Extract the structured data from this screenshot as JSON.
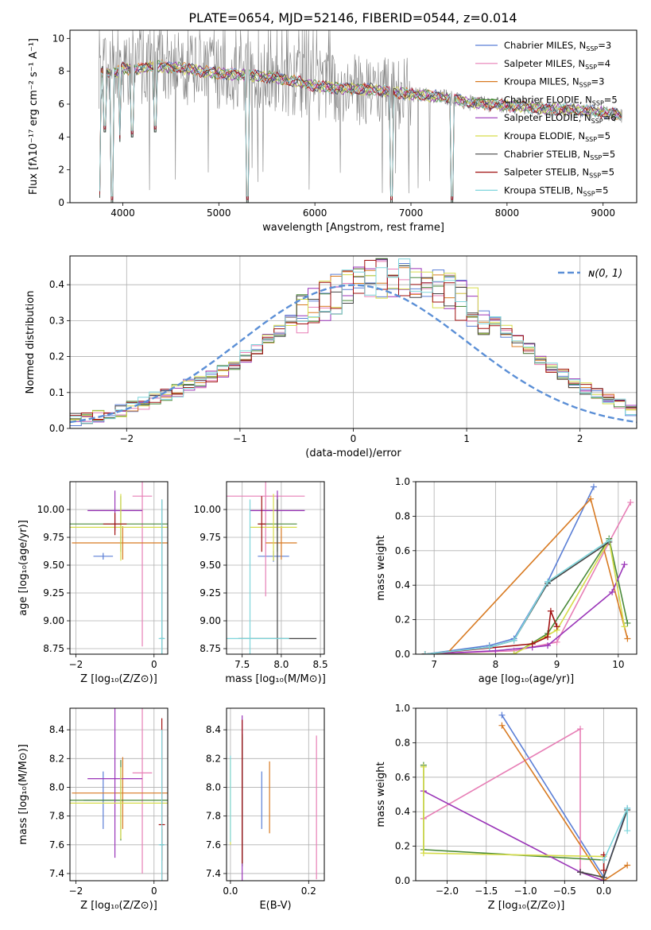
{
  "title": "PLATE=0654, MJD=52146, FIBERID=0544, z=0.014",
  "colors": [
    "#5b7fd6",
    "#e77fb6",
    "#d87a22",
    "#4a8a3a",
    "#9a35b8",
    "#d6dc4a",
    "#444444",
    "#a01010",
    "#7fd6dc"
  ],
  "legend_names": [
    {
      "base": "Chabrier MILES, N",
      "sub": "SSP",
      "tail": "=3"
    },
    {
      "base": "Salpeter MILES, N",
      "sub": "SSP",
      "tail": "=4"
    },
    {
      "base": "Kroupa MILES, N",
      "sub": "SSP",
      "tail": "=3"
    },
    {
      "base": "Chabrier ELODIE, N",
      "sub": "SSP",
      "tail": "=5"
    },
    {
      "base": "Salpeter ELODIE, N",
      "sub": "SSP",
      "tail": "=6"
    },
    {
      "base": "Kroupa ELODIE, N",
      "sub": "SSP",
      "tail": "=5"
    },
    {
      "base": "Chabrier STELIB, N",
      "sub": "SSP",
      "tail": "=5"
    },
    {
      "base": "Salpeter STELIB, N",
      "sub": "SSP",
      "tail": "=5"
    },
    {
      "base": "Kroupa STELIB, N",
      "sub": "SSP",
      "tail": "=5"
    }
  ],
  "chart_data": [
    {
      "id": "spectrum",
      "type": "line",
      "xlabel": "wavelength [Angstrom, rest frame]",
      "ylabel": "Flux [fλ10⁻¹⁷ erg cm⁻² s⁻¹ A⁻¹]",
      "xlim": [
        3450,
        9350
      ],
      "ylim": [
        0,
        10.5
      ],
      "xticks": [
        4000,
        5000,
        6000,
        7000,
        8000,
        9000
      ],
      "yticks": [
        0,
        2,
        4,
        6,
        8,
        10
      ],
      "continuum": [
        [
          3750,
          7.5
        ],
        [
          3800,
          8.1
        ],
        [
          3900,
          7.8
        ],
        [
          4000,
          8.2
        ],
        [
          4100,
          8.1
        ],
        [
          4200,
          8.2
        ],
        [
          4400,
          8.3
        ],
        [
          4600,
          8.2
        ],
        [
          4800,
          8.0
        ],
        [
          5000,
          7.9
        ],
        [
          5200,
          7.8
        ],
        [
          5400,
          7.7
        ],
        [
          5600,
          7.6
        ],
        [
          5800,
          7.4
        ],
        [
          6000,
          7.1
        ],
        [
          6200,
          7.0
        ],
        [
          6400,
          6.9
        ],
        [
          6600,
          6.9
        ],
        [
          6800,
          6.7
        ],
        [
          7000,
          6.6
        ],
        [
          7200,
          6.5
        ],
        [
          7400,
          6.4
        ],
        [
          7600,
          6.1
        ],
        [
          7800,
          6.0
        ],
        [
          8000,
          5.9
        ],
        [
          8200,
          5.85
        ],
        [
          8400,
          5.7
        ],
        [
          8600,
          5.7
        ],
        [
          8800,
          5.6
        ],
        [
          9000,
          5.5
        ],
        [
          9200,
          5.3
        ]
      ],
      "dips": [
        [
          3760,
          0.3
        ],
        [
          3810,
          4.3
        ],
        [
          3890,
          0
        ],
        [
          3970,
          3.7
        ],
        [
          4100,
          4.0
        ],
        [
          4340,
          4.3
        ],
        [
          5300,
          0
        ],
        [
          6800,
          0
        ],
        [
          7430,
          0
        ]
      ]
    },
    {
      "id": "residuals",
      "type": "bar",
      "xlabel": "(data-model)/error",
      "ylabel": "Normed distribution",
      "xlim": [
        -2.5,
        2.5
      ],
      "ylim": [
        0,
        0.48
      ],
      "xticks": [
        -2,
        -1,
        0,
        1,
        2
      ],
      "yticks": [
        0.0,
        0.1,
        0.2,
        0.3,
        0.4
      ],
      "legend": "ɴ(0, 1)",
      "bin_edges_start": -2.5,
      "bin_width": 0.1,
      "base_values": [
        0.025,
        0.03,
        0.035,
        0.04,
        0.05,
        0.06,
        0.07,
        0.085,
        0.095,
        0.105,
        0.12,
        0.13,
        0.145,
        0.16,
        0.18,
        0.2,
        0.22,
        0.245,
        0.27,
        0.3,
        0.32,
        0.34,
        0.36,
        0.375,
        0.39,
        0.4,
        0.41,
        0.415,
        0.42,
        0.42,
        0.41,
        0.4,
        0.39,
        0.375,
        0.36,
        0.34,
        0.32,
        0.3,
        0.27,
        0.245,
        0.22,
        0.195,
        0.17,
        0.15,
        0.13,
        0.11,
        0.095,
        0.08,
        0.065,
        0.05
      ]
    },
    {
      "id": "age_vs_Z",
      "type": "errorbar",
      "xlabel": "Z [log₁₀(Z/Z⊙)]",
      "ylabel": "age  [log₁₀(age/yr)]",
      "xlim": [
        -2.15,
        0.35
      ],
      "ylim": [
        8.7,
        10.25
      ],
      "xticks": [
        -2,
        0
      ],
      "yticks": [
        8.75,
        9.0,
        9.25,
        9.5,
        9.75,
        10.0
      ],
      "points": [
        [
          -1.3,
          9.58,
          0.25,
          0.03,
          0
        ],
        [
          -0.3,
          10.12,
          0.25,
          1.35,
          1
        ],
        [
          -0.8,
          9.7,
          1.3,
          0.15,
          2
        ],
        [
          -0.85,
          9.87,
          1.3,
          0.25,
          3
        ],
        [
          -1.0,
          9.99,
          0.7,
          0.18,
          4
        ],
        [
          -0.85,
          9.84,
          1.3,
          0.3,
          5
        ],
        [
          0.2,
          8.84,
          0.05,
          1.25,
          6
        ],
        [
          -1.0,
          9.87,
          0.3,
          0.1,
          7
        ],
        [
          0.2,
          8.84,
          0.08,
          1.25,
          8
        ]
      ]
    },
    {
      "id": "age_vs_mass",
      "type": "errorbar",
      "xlabel": "mass [log₁₀(M/M⊙)]",
      "ylabel": "",
      "xlim": [
        7.3,
        8.55
      ],
      "ylim": [
        8.7,
        10.25
      ],
      "xticks": [
        7.5,
        8.0,
        8.5
      ],
      "yticks": [
        8.75,
        9.0,
        9.25,
        9.5,
        9.75,
        10.0
      ],
      "points": [
        [
          7.9,
          9.58,
          0.2,
          0.05,
          0
        ],
        [
          7.8,
          10.12,
          0.5,
          0.9,
          1
        ],
        [
          8.0,
          9.7,
          0.2,
          0.15,
          2
        ],
        [
          7.95,
          9.87,
          0.25,
          0.25,
          3
        ],
        [
          7.95,
          9.99,
          0.35,
          0.18,
          4
        ],
        [
          7.9,
          9.84,
          0.3,
          0.3,
          5
        ],
        [
          7.95,
          8.84,
          0.5,
          1.25,
          6
        ],
        [
          7.75,
          9.87,
          0.05,
          0.25,
          7
        ],
        [
          7.6,
          8.84,
          0.5,
          1.25,
          8
        ]
      ]
    },
    {
      "id": "weight_vs_age",
      "type": "line",
      "xlabel": "age  [log₁₀(age/yr)]",
      "ylabel": "mass weight",
      "xlim": [
        6.7,
        10.3
      ],
      "ylim": [
        0,
        1.0
      ],
      "xticks": [
        7,
        8,
        9,
        10
      ],
      "yticks": [
        0.0,
        0.2,
        0.4,
        0.6,
        0.8,
        1.0
      ],
      "series": [
        {
          "c": 0,
          "x": [
            6.85,
            7.9,
            8.3,
            8.85,
            9.6
          ],
          "y": [
            0,
            0.05,
            0.09,
            0.42,
            0.97
          ]
        },
        {
          "c": 1,
          "x": [
            6.85,
            8.3,
            9.0,
            9.85,
            10.2
          ],
          "y": [
            0,
            0.02,
            0.07,
            0.65,
            0.88
          ]
        },
        {
          "c": 2,
          "x": [
            6.85,
            7.2,
            9.55,
            10.15
          ],
          "y": [
            0,
            0,
            0.9,
            0.09
          ]
        },
        {
          "c": 3,
          "x": [
            6.85,
            8.3,
            8.85,
            9.85,
            10.15
          ],
          "y": [
            0,
            0,
            0.12,
            0.67,
            0.18
          ]
        },
        {
          "c": 4,
          "x": [
            6.85,
            8.0,
            8.6,
            8.85,
            9.9,
            10.1
          ],
          "y": [
            0,
            0.02,
            0.04,
            0.05,
            0.36,
            0.52
          ]
        },
        {
          "c": 5,
          "x": [
            6.85,
            8.3,
            9.0,
            9.85,
            10.1
          ],
          "y": [
            0,
            0,
            0.14,
            0.66,
            0.16
          ]
        },
        {
          "c": 6,
          "x": [
            6.85,
            7.9,
            8.3,
            8.85,
            9.85
          ],
          "y": [
            0,
            0.04,
            0.08,
            0.41,
            0.65
          ]
        },
        {
          "c": 7,
          "x": [
            6.85,
            8.6,
            8.85,
            8.9,
            9.0
          ],
          "y": [
            0,
            0.06,
            0.1,
            0.25,
            0.16
          ]
        },
        {
          "c": 8,
          "x": [
            6.85,
            7.9,
            8.3,
            8.85,
            9.85
          ],
          "y": [
            0,
            0.04,
            0.08,
            0.42,
            0.66
          ]
        }
      ]
    },
    {
      "id": "mass_vs_Z",
      "type": "errorbar",
      "xlabel": "Z [log₁₀(Z/Z⊙)]",
      "ylabel": "mass [log₁₀(M/M⊙)]",
      "xlim": [
        -2.15,
        0.35
      ],
      "ylim": [
        7.35,
        8.55
      ],
      "xticks": [
        -2,
        0
      ],
      "yticks": [
        7.4,
        7.6,
        7.8,
        8.0,
        8.2,
        8.4
      ],
      "points": [
        [
          -1.3,
          7.91,
          0.5,
          0.2,
          0
        ],
        [
          -0.3,
          8.1,
          0.25,
          0.7,
          1
        ],
        [
          -0.8,
          7.96,
          1.3,
          0.25,
          2
        ],
        [
          -0.85,
          7.91,
          1.3,
          0.28,
          3
        ],
        [
          -1.0,
          8.06,
          0.7,
          0.55,
          4
        ],
        [
          -0.85,
          7.89,
          1.3,
          0.25,
          5
        ],
        [
          0.2,
          7.6,
          0.05,
          0.11,
          6
        ],
        [
          0.2,
          7.74,
          0.08,
          0.74,
          7
        ],
        [
          0.2,
          7.6,
          0.08,
          0.8,
          8
        ]
      ]
    },
    {
      "id": "mass_vs_ebv",
      "type": "errorbar",
      "xlabel": "E(B-V)",
      "ylabel": "",
      "xlim": [
        -0.01,
        0.24
      ],
      "ylim": [
        7.35,
        8.55
      ],
      "xticks": [
        0.0,
        0.2
      ],
      "yticks": [
        7.4,
        7.6,
        7.8,
        8.0,
        8.2,
        8.4
      ],
      "points": [
        [
          0.08,
          7.91,
          0,
          0.2,
          0
        ],
        [
          0.22,
          7.86,
          0,
          0.5,
          1
        ],
        [
          0.1,
          7.93,
          0,
          0.25,
          2
        ],
        [
          0.03,
          7.9,
          0,
          0.45,
          3
        ],
        [
          0.03,
          7.9,
          0,
          0.6,
          4
        ],
        [
          0.0,
          7.9,
          0,
          0.3,
          5
        ],
        [
          0.03,
          7.92,
          0,
          0.45,
          6
        ],
        [
          0.03,
          7.97,
          0,
          0.5,
          7
        ],
        [
          0.0,
          7.92,
          0,
          0.3,
          8
        ]
      ]
    },
    {
      "id": "weight_vs_Z",
      "type": "line",
      "xlabel": "Z [log₁₀(Z/Z⊙)]",
      "ylabel": "mass weight",
      "xlim": [
        -2.4,
        0.42
      ],
      "ylim": [
        0,
        1.0
      ],
      "xticks": [
        -2.0,
        -1.5,
        -1.0,
        -0.5,
        0.0
      ],
      "yticks": [
        0.0,
        0.2,
        0.4,
        0.6,
        0.8,
        1.0
      ],
      "series": [
        {
          "c": 0,
          "x": [
            -1.3,
            0.0,
            0.3
          ],
          "y": [
            0.96,
            0.02,
            0.42
          ]
        },
        {
          "c": 1,
          "x": [
            -2.3,
            -0.3,
            -0.3,
            0.0
          ],
          "y": [
            0.36,
            0.88,
            0.05,
            0.0
          ]
        },
        {
          "c": 2,
          "x": [
            -1.3,
            0.0,
            0.3
          ],
          "y": [
            0.9,
            0.0,
            0.09
          ]
        },
        {
          "c": 3,
          "x": [
            -2.3,
            -2.3,
            0.0
          ],
          "y": [
            0.67,
            0.18,
            0.12
          ]
        },
        {
          "c": 4,
          "x": [
            -2.3,
            -0.3,
            0.0
          ],
          "y": [
            0.52,
            0.05,
            0.0
          ]
        },
        {
          "c": 5,
          "x": [
            -2.3,
            -2.3,
            0.0
          ],
          "y": [
            0.66,
            0.16,
            0.14
          ]
        },
        {
          "c": 6,
          "x": [
            -0.3,
            0.0,
            0.3
          ],
          "y": [
            0.05,
            0.02,
            0.41
          ]
        },
        {
          "c": 7,
          "x": [
            0.0,
            0.0
          ],
          "y": [
            0.15,
            0.06
          ]
        },
        {
          "c": 8,
          "x": [
            0.0,
            0.3,
            0.3
          ],
          "y": [
            0.12,
            0.42,
            0.29
          ]
        }
      ]
    }
  ]
}
